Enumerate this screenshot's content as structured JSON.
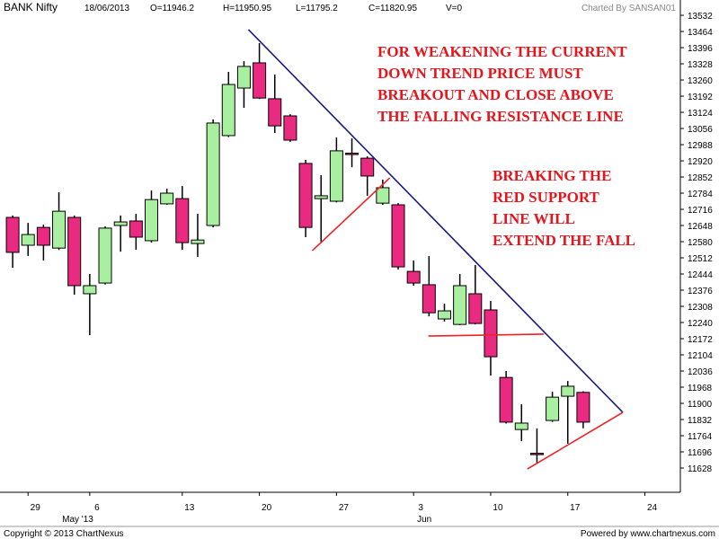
{
  "chart_data": {
    "type": "candlestick",
    "header": [
      "BANK Nifty",
      "18/06/2013",
      "O=11946.2",
      "H=11950.95",
      "L=11795.2",
      "C=11820.95",
      "V=0"
    ],
    "credit": "Charted By SANSAN01",
    "open": [
      12682,
      12565,
      12640,
      12553,
      12682,
      12361,
      12406,
      12648,
      12667,
      12584,
      12739,
      12761,
      12572,
      12648,
      13026,
      13226,
      13332,
      13181,
      13109,
      12909,
      12761,
      12750,
      12952,
      12931,
      12742,
      12735,
      12455,
      12399,
      12255,
      12232,
      12361,
      12293,
      12009,
      11790,
      11690,
      11828,
      11930,
      11946.2
    ],
    "high": [
      12690,
      12659,
      12652,
      12788,
      12690,
      12444,
      12644,
      12690,
      12697,
      12795,
      12803,
      12814,
      12697,
      13094,
      13294,
      13339,
      13415,
      13283,
      13116,
      12924,
      12860,
      13018,
      13014,
      12939,
      12841,
      12742,
      12501,
      12520,
      12319,
      12444,
      12482,
      12331,
      12036,
      11896,
      11794,
      11949,
      11994,
      11950.95
    ],
    "low": [
      12470,
      12520,
      12501,
      12545,
      12357,
      12187,
      12400,
      12538,
      12546,
      12576,
      12735,
      12546,
      12516,
      12640,
      13020,
      13143,
      13180,
      13037,
      13000,
      12599,
      12576,
      12745,
      12893,
      12773,
      12735,
      12463,
      12395,
      12266,
      12244,
      12229,
      12232,
      12017,
      11815,
      11741,
      11651,
      11822,
      11730,
      11795.2
    ],
    "close": [
      12535,
      12610,
      12565,
      12708,
      12395,
      12395,
      12637,
      12663,
      12599,
      12757,
      12784,
      12576,
      12587,
      13079,
      13241,
      13317,
      13184,
      13067,
      13007,
      12640,
      12773,
      12962,
      12948,
      12856,
      12807,
      12474,
      12406,
      12281,
      12289,
      12395,
      12236,
      12096,
      11821,
      11817,
      11686,
      11926,
      11972,
      11820.95
    ],
    "up_color": "#a8f0a0",
    "down_color": "#ea2a80",
    "xlim": [
      -0.82,
      43.3
    ],
    "xticks": [
      {
        "value": 1,
        "label": "29"
      },
      {
        "value": 5,
        "label": "6"
      },
      {
        "value": 11,
        "label": "13"
      },
      {
        "value": 16,
        "label": "20"
      },
      {
        "value": 21,
        "label": "27"
      },
      {
        "value": 26,
        "label": "3"
      },
      {
        "value": 31,
        "label": "10"
      },
      {
        "value": 36,
        "label": "17"
      },
      {
        "value": 41,
        "label": "24"
      }
    ],
    "month_labels": [
      {
        "value": 5,
        "label": "May '13"
      },
      {
        "value": 26,
        "label": "Jun"
      }
    ],
    "ylim": [
      11526,
      13585
    ],
    "yticks": [
      11628,
      11696,
      11764,
      11832,
      11900,
      11968,
      12036,
      12104,
      12172,
      12240,
      12308,
      12376,
      12444,
      12512,
      12580,
      12648,
      12716,
      12784,
      12852,
      12920,
      12988,
      13056,
      13124,
      13192,
      13260,
      13328,
      13396,
      13464,
      13532
    ],
    "trend_lines": [
      {
        "color": "#1a1a80",
        "x": [
          15.29,
          39.57
        ],
        "y": [
          13472,
          11862
        ]
      },
      {
        "color": "#ee2222",
        "x": [
          19.43,
          24.45
        ],
        "y": [
          12542,
          12848
        ]
      },
      {
        "color": "#ee2222",
        "x": [
          26.96,
          34.43
        ],
        "y": [
          12183,
          12191
        ]
      },
      {
        "color": "#ee2222",
        "x": [
          33.38,
          39.57
        ],
        "y": [
          11624,
          11862
        ]
      }
    ],
    "annotations": [
      {
        "lines": [
          "FOR WEAKENING THE CURRENT",
          "DOWN TREND PRICE MUST",
          "BREAKOUT AND CLOSE ABOVE",
          "THE FALLING RESISTANCE LINE"
        ]
      },
      {
        "lines": [
          "BREAKING THE",
          "RED SUPPORT",
          "LINE WILL",
          "EXTEND THE FALL"
        ]
      }
    ],
    "footer": {
      "left": "Copyright © 2013 ChartNexus",
      "right": "Powered by www.chartnexus.com"
    }
  }
}
